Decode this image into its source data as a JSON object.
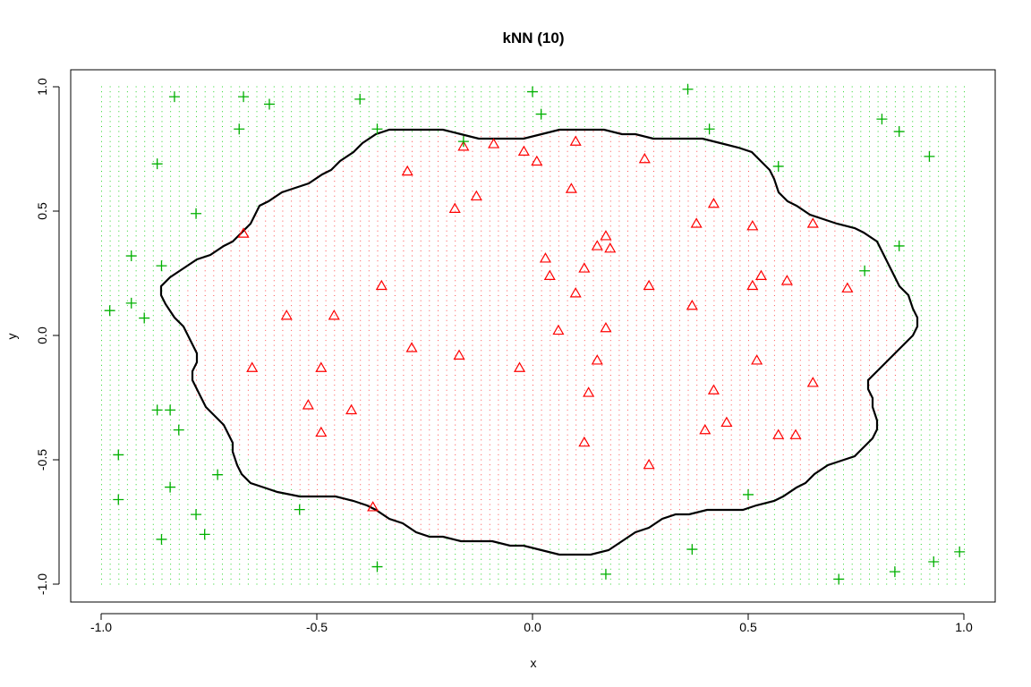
{
  "chart_data": {
    "type": "scatter",
    "title": "kNN (10)",
    "xlabel": "x",
    "ylabel": "y",
    "xlim": [
      -1.0,
      1.0
    ],
    "ylim": [
      -1.0,
      1.0
    ],
    "x_ticks": [
      -1.0,
      -0.5,
      0.0,
      0.5,
      1.0
    ],
    "y_ticks": [
      -1.0,
      -0.5,
      0.0,
      0.5,
      1.0
    ],
    "x_tick_labels": [
      "-1.0",
      "-0.5",
      "0.0",
      "0.5",
      "1.0"
    ],
    "y_tick_labels": [
      "-1.0",
      "-0.5",
      "0.0",
      "0.5",
      "1.0"
    ],
    "grid_background": {
      "x_range": [
        -1.0,
        1.0
      ],
      "y_range": [
        -1.0,
        1.0
      ],
      "step": 0.02,
      "inside_color": "#ff0000",
      "outside_color": "#00cc00",
      "decision_region": {
        "center": [
          0.02,
          0.0
        ],
        "rx": 0.84,
        "ry": 0.84
      }
    },
    "decision_boundary_color": "#000000",
    "series": [
      {
        "marker": "triangle",
        "color": "#ff0000",
        "points": [
          [
            -0.29,
            0.66
          ],
          [
            -0.18,
            0.51
          ],
          [
            -0.13,
            0.56
          ],
          [
            -0.16,
            0.76
          ],
          [
            -0.09,
            0.77
          ],
          [
            -0.02,
            0.74
          ],
          [
            0.01,
            0.7
          ],
          [
            0.1,
            0.78
          ],
          [
            0.09,
            0.59
          ],
          [
            0.26,
            0.71
          ],
          [
            -0.67,
            0.41
          ],
          [
            -0.35,
            0.2
          ],
          [
            -0.57,
            0.08
          ],
          [
            -0.46,
            0.08
          ],
          [
            -0.65,
            -0.13
          ],
          [
            -0.49,
            -0.13
          ],
          [
            -0.28,
            -0.05
          ],
          [
            -0.17,
            -0.08
          ],
          [
            -0.03,
            -0.13
          ],
          [
            -0.52,
            -0.28
          ],
          [
            -0.49,
            -0.39
          ],
          [
            -0.42,
            -0.3
          ],
          [
            -0.37,
            -0.69
          ],
          [
            0.03,
            0.31
          ],
          [
            0.04,
            0.24
          ],
          [
            0.12,
            0.27
          ],
          [
            0.15,
            0.36
          ],
          [
            0.17,
            0.4
          ],
          [
            0.18,
            0.35
          ],
          [
            0.1,
            0.17
          ],
          [
            0.06,
            0.02
          ],
          [
            0.17,
            0.03
          ],
          [
            0.15,
            -0.1
          ],
          [
            0.13,
            -0.23
          ],
          [
            0.12,
            -0.43
          ],
          [
            0.27,
            0.2
          ],
          [
            0.27,
            -0.52
          ],
          [
            0.37,
            0.12
          ],
          [
            0.38,
            0.45
          ],
          [
            0.42,
            0.53
          ],
          [
            0.42,
            -0.22
          ],
          [
            0.4,
            -0.38
          ],
          [
            0.45,
            -0.35
          ],
          [
            0.51,
            0.44
          ],
          [
            0.51,
            0.2
          ],
          [
            0.53,
            0.24
          ],
          [
            0.52,
            -0.1
          ],
          [
            0.59,
            0.22
          ],
          [
            0.65,
            0.45
          ],
          [
            0.73,
            0.19
          ],
          [
            0.65,
            -0.19
          ],
          [
            0.57,
            -0.4
          ],
          [
            0.61,
            -0.4
          ]
        ]
      },
      {
        "marker": "plus",
        "color": "#00b000",
        "points": [
          [
            -0.83,
            0.96
          ],
          [
            -0.67,
            0.96
          ],
          [
            -0.61,
            0.93
          ],
          [
            -0.68,
            0.83
          ],
          [
            -0.4,
            0.95
          ],
          [
            -0.36,
            0.83
          ],
          [
            -0.16,
            0.78
          ],
          [
            0.0,
            0.98
          ],
          [
            0.02,
            0.89
          ],
          [
            0.36,
            0.99
          ],
          [
            0.41,
            0.83
          ],
          [
            0.57,
            0.68
          ],
          [
            0.81,
            0.87
          ],
          [
            0.85,
            0.82
          ],
          [
            0.92,
            0.72
          ],
          [
            0.85,
            0.36
          ],
          [
            0.77,
            0.26
          ],
          [
            -0.87,
            0.69
          ],
          [
            -0.78,
            0.49
          ],
          [
            -0.93,
            0.32
          ],
          [
            -0.86,
            0.28
          ],
          [
            -0.93,
            0.13
          ],
          [
            -0.98,
            0.1
          ],
          [
            -0.9,
            0.07
          ],
          [
            -0.87,
            -0.3
          ],
          [
            -0.84,
            -0.3
          ],
          [
            -0.82,
            -0.38
          ],
          [
            -0.96,
            -0.48
          ],
          [
            -0.73,
            -0.56
          ],
          [
            -0.84,
            -0.61
          ],
          [
            -0.96,
            -0.66
          ],
          [
            -0.54,
            -0.7
          ],
          [
            -0.78,
            -0.72
          ],
          [
            -0.86,
            -0.82
          ],
          [
            -0.76,
            -0.8
          ],
          [
            -0.36,
            -0.93
          ],
          [
            0.17,
            -0.96
          ],
          [
            0.37,
            -0.86
          ],
          [
            0.71,
            -0.98
          ],
          [
            0.84,
            -0.95
          ],
          [
            0.93,
            -0.91
          ],
          [
            0.99,
            -0.87
          ],
          [
            0.5,
            -0.64
          ]
        ]
      }
    ]
  }
}
